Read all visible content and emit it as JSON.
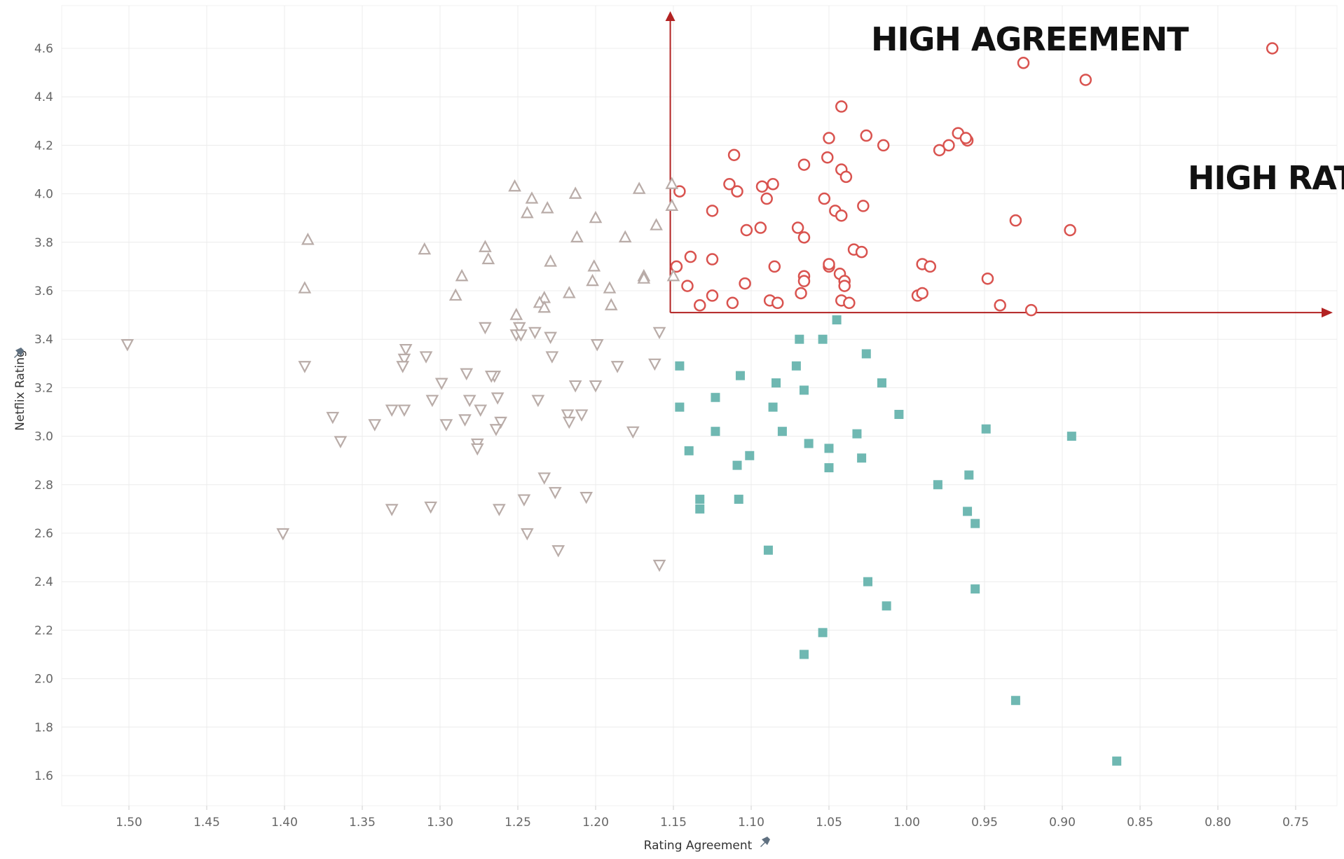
{
  "chart_data": {
    "type": "scatter",
    "xlabel": "Rating Agreement",
    "ylabel": "Netflix Rating",
    "x_reversed": true,
    "xlim": [
      0.73,
      1.54
    ],
    "ylim": [
      1.48,
      4.75
    ],
    "x_ticks": [
      "1.50",
      "1.45",
      "1.40",
      "1.35",
      "1.30",
      "1.25",
      "1.20",
      "1.15",
      "1.10",
      "1.05",
      "1.00",
      "0.95",
      "0.90",
      "0.85",
      "0.80",
      "0.75"
    ],
    "y_ticks": [
      "1.6",
      "1.8",
      "2.0",
      "2.2",
      "2.4",
      "2.6",
      "2.8",
      "3.0",
      "3.2",
      "3.4",
      "3.6",
      "3.8",
      "4.0",
      "4.2",
      "4.4",
      "4.6"
    ],
    "grid": true,
    "reference_lines": {
      "x": 1.152,
      "y": 3.51,
      "color": "#b22222"
    },
    "annotations": [
      "HIGH AGREEMENT",
      "HIGH RATING"
    ],
    "series": [
      {
        "marker": "circle",
        "color": "#d9534f",
        "points": [
          [
            0.765,
            4.6
          ],
          [
            0.925,
            4.54
          ],
          [
            0.885,
            4.47
          ],
          [
            1.042,
            4.36
          ],
          [
            1.05,
            4.23
          ],
          [
            1.026,
            4.24
          ],
          [
            0.967,
            4.25
          ],
          [
            0.961,
            4.22
          ],
          [
            0.962,
            4.23
          ],
          [
            1.015,
            4.2
          ],
          [
            0.973,
            4.2
          ],
          [
            0.979,
            4.18
          ],
          [
            1.111,
            4.16
          ],
          [
            1.051,
            4.15
          ],
          [
            1.066,
            4.12
          ],
          [
            1.042,
            4.1
          ],
          [
            1.039,
            4.07
          ],
          [
            1.146,
            4.01
          ],
          [
            1.114,
            4.04
          ],
          [
            1.109,
            4.01
          ],
          [
            1.093,
            4.03
          ],
          [
            1.086,
            4.04
          ],
          [
            1.09,
            3.98
          ],
          [
            1.053,
            3.98
          ],
          [
            1.125,
            3.93
          ],
          [
            1.046,
            3.93
          ],
          [
            1.042,
            3.91
          ],
          [
            1.028,
            3.95
          ],
          [
            1.103,
            3.85
          ],
          [
            1.094,
            3.86
          ],
          [
            1.07,
            3.86
          ],
          [
            1.066,
            3.82
          ],
          [
            0.93,
            3.89
          ],
          [
            0.895,
            3.85
          ],
          [
            1.034,
            3.77
          ],
          [
            1.029,
            3.76
          ],
          [
            1.139,
            3.74
          ],
          [
            1.125,
            3.73
          ],
          [
            1.148,
            3.7
          ],
          [
            1.085,
            3.7
          ],
          [
            1.05,
            3.7
          ],
          [
            1.05,
            3.71
          ],
          [
            1.043,
            3.67
          ],
          [
            0.99,
            3.71
          ],
          [
            0.985,
            3.7
          ],
          [
            1.066,
            3.66
          ],
          [
            1.066,
            3.64
          ],
          [
            1.04,
            3.64
          ],
          [
            1.04,
            3.62
          ],
          [
            0.948,
            3.65
          ],
          [
            1.141,
            3.62
          ],
          [
            1.104,
            3.63
          ],
          [
            1.125,
            3.58
          ],
          [
            1.112,
            3.55
          ],
          [
            1.133,
            3.54
          ],
          [
            1.088,
            3.56
          ],
          [
            1.083,
            3.55
          ],
          [
            1.068,
            3.59
          ],
          [
            1.042,
            3.56
          ],
          [
            1.037,
            3.55
          ],
          [
            0.993,
            3.58
          ],
          [
            0.99,
            3.59
          ],
          [
            0.94,
            3.54
          ],
          [
            0.92,
            3.52
          ]
        ]
      },
      {
        "marker": "square",
        "color": "#6fb8b2",
        "points": [
          [
            1.045,
            3.48
          ],
          [
            1.069,
            3.4
          ],
          [
            1.054,
            3.4
          ],
          [
            1.026,
            3.34
          ],
          [
            1.146,
            3.29
          ],
          [
            1.071,
            3.29
          ],
          [
            1.107,
            3.25
          ],
          [
            1.084,
            3.22
          ],
          [
            1.016,
            3.22
          ],
          [
            1.066,
            3.19
          ],
          [
            1.123,
            3.16
          ],
          [
            1.146,
            3.12
          ],
          [
            1.086,
            3.12
          ],
          [
            1.005,
            3.09
          ],
          [
            1.123,
            3.02
          ],
          [
            1.08,
            3.02
          ],
          [
            1.032,
            3.01
          ],
          [
            0.949,
            3.03
          ],
          [
            0.894,
            3.0
          ],
          [
            1.14,
            2.94
          ],
          [
            1.101,
            2.92
          ],
          [
            1.063,
            2.97
          ],
          [
            1.05,
            2.95
          ],
          [
            1.029,
            2.91
          ],
          [
            1.109,
            2.88
          ],
          [
            1.05,
            2.87
          ],
          [
            0.96,
            2.84
          ],
          [
            0.98,
            2.8
          ],
          [
            1.133,
            2.74
          ],
          [
            1.133,
            2.7
          ],
          [
            1.108,
            2.74
          ],
          [
            0.961,
            2.69
          ],
          [
            0.956,
            2.64
          ],
          [
            1.089,
            2.53
          ],
          [
            1.025,
            2.4
          ],
          [
            0.956,
            2.37
          ],
          [
            1.013,
            2.3
          ],
          [
            1.054,
            2.19
          ],
          [
            1.066,
            2.1
          ],
          [
            0.93,
            1.91
          ],
          [
            0.865,
            1.66
          ]
        ]
      },
      {
        "marker": "triangle-up",
        "color": "#b9aca8",
        "points": [
          [
            1.151,
            4.04
          ],
          [
            1.252,
            4.03
          ],
          [
            1.172,
            4.02
          ],
          [
            1.213,
            4.0
          ],
          [
            1.241,
            3.98
          ],
          [
            1.151,
            3.95
          ],
          [
            1.231,
            3.94
          ],
          [
            1.244,
            3.92
          ],
          [
            1.2,
            3.9
          ],
          [
            1.161,
            3.87
          ],
          [
            1.212,
            3.82
          ],
          [
            1.181,
            3.82
          ],
          [
            1.385,
            3.81
          ],
          [
            1.31,
            3.77
          ],
          [
            1.271,
            3.78
          ],
          [
            1.269,
            3.73
          ],
          [
            1.229,
            3.72
          ],
          [
            1.201,
            3.7
          ],
          [
            1.286,
            3.66
          ],
          [
            1.169,
            3.66
          ],
          [
            1.15,
            3.66
          ],
          [
            1.169,
            3.65
          ],
          [
            1.202,
            3.64
          ],
          [
            1.191,
            3.61
          ],
          [
            1.387,
            3.61
          ],
          [
            1.29,
            3.58
          ],
          [
            1.217,
            3.59
          ],
          [
            1.233,
            3.57
          ],
          [
            1.236,
            3.55
          ],
          [
            1.233,
            3.53
          ],
          [
            1.19,
            3.54
          ],
          [
            1.251,
            3.5
          ]
        ]
      },
      {
        "marker": "triangle-down",
        "color": "#b9aca8",
        "points": [
          [
            1.501,
            3.38
          ],
          [
            1.271,
            3.45
          ],
          [
            1.249,
            3.45
          ],
          [
            1.159,
            3.43
          ],
          [
            1.239,
            3.43
          ],
          [
            1.251,
            3.42
          ],
          [
            1.248,
            3.42
          ],
          [
            1.229,
            3.41
          ],
          [
            1.199,
            3.38
          ],
          [
            1.322,
            3.36
          ],
          [
            1.309,
            3.33
          ],
          [
            1.228,
            3.33
          ],
          [
            1.323,
            3.32
          ],
          [
            1.324,
            3.29
          ],
          [
            1.387,
            3.29
          ],
          [
            1.186,
            3.29
          ],
          [
            1.162,
            3.3
          ],
          [
            1.283,
            3.26
          ],
          [
            1.265,
            3.25
          ],
          [
            1.267,
            3.25
          ],
          [
            1.299,
            3.22
          ],
          [
            1.213,
            3.21
          ],
          [
            1.2,
            3.21
          ],
          [
            1.263,
            3.16
          ],
          [
            1.305,
            3.15
          ],
          [
            1.281,
            3.15
          ],
          [
            1.237,
            3.15
          ],
          [
            1.331,
            3.11
          ],
          [
            1.323,
            3.11
          ],
          [
            1.274,
            3.11
          ],
          [
            1.218,
            3.09
          ],
          [
            1.209,
            3.09
          ],
          [
            1.369,
            3.08
          ],
          [
            1.284,
            3.07
          ],
          [
            1.217,
            3.06
          ],
          [
            1.261,
            3.06
          ],
          [
            1.342,
            3.05
          ],
          [
            1.296,
            3.05
          ],
          [
            1.264,
            3.03
          ],
          [
            1.176,
            3.02
          ],
          [
            1.364,
            2.98
          ],
          [
            1.276,
            2.97
          ],
          [
            1.276,
            2.95
          ],
          [
            1.233,
            2.83
          ],
          [
            1.226,
            2.77
          ],
          [
            1.246,
            2.74
          ],
          [
            1.206,
            2.75
          ],
          [
            1.306,
            2.71
          ],
          [
            1.331,
            2.7
          ],
          [
            1.262,
            2.7
          ],
          [
            1.401,
            2.6
          ],
          [
            1.244,
            2.6
          ],
          [
            1.224,
            2.53
          ],
          [
            1.159,
            2.47
          ]
        ]
      }
    ]
  }
}
